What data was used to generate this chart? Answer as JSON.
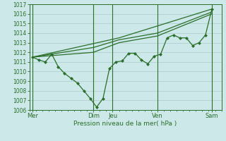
{
  "xlabel": "Pression niveau de la mer( hPa )",
  "ylim": [
    1006,
    1017
  ],
  "yticks": [
    1006,
    1007,
    1008,
    1009,
    1010,
    1011,
    1012,
    1013,
    1014,
    1015,
    1016,
    1017
  ],
  "xlim": [
    0,
    30
  ],
  "bg_color": "#cce8e8",
  "grid_color": "#aacccc",
  "line_color": "#2a6e2a",
  "day_labels": [
    "Mer",
    "Dim",
    "Jeu",
    "Ven",
    "Sam"
  ],
  "day_positions": [
    0.5,
    10,
    13,
    20,
    28.5
  ],
  "vline_positions": [
    0.5,
    10,
    13,
    20,
    28.5
  ],
  "line1_x": [
    0.5,
    1.5,
    2.5,
    3.5,
    4.5,
    5.5,
    6.5,
    7.5,
    8.5,
    9.5,
    10.5,
    11.5,
    12.5,
    13.5,
    14.5,
    15.5,
    16.5,
    17.5,
    18.5,
    19.5,
    20.5,
    21.5,
    22.5,
    23.5,
    24.5,
    25.5,
    26.5,
    27.5,
    28.5
  ],
  "line1_y": [
    1011.5,
    1011.2,
    1011.0,
    1011.8,
    1010.5,
    1009.8,
    1009.3,
    1008.8,
    1008.0,
    1007.2,
    1006.3,
    1007.2,
    1010.3,
    1011.0,
    1011.1,
    1011.9,
    1011.9,
    1011.2,
    1010.8,
    1011.6,
    1011.8,
    1013.5,
    1013.8,
    1013.5,
    1013.5,
    1012.7,
    1013.0,
    1013.8,
    1016.5
  ],
  "line2_x": [
    0.5,
    14,
    28.5
  ],
  "line2_y": [
    1011.5,
    1013.5,
    1016.5
  ],
  "line3_x": [
    0.5,
    10,
    14,
    20,
    28.5
  ],
  "line3_y": [
    1011.5,
    1012.5,
    1013.3,
    1014.0,
    1016.2
  ],
  "line4_x": [
    0.5,
    10,
    14,
    20,
    28.5
  ],
  "line4_y": [
    1011.5,
    1012.0,
    1013.0,
    1013.7,
    1016.0
  ],
  "lw": 0.9,
  "marker_size": 2.5
}
